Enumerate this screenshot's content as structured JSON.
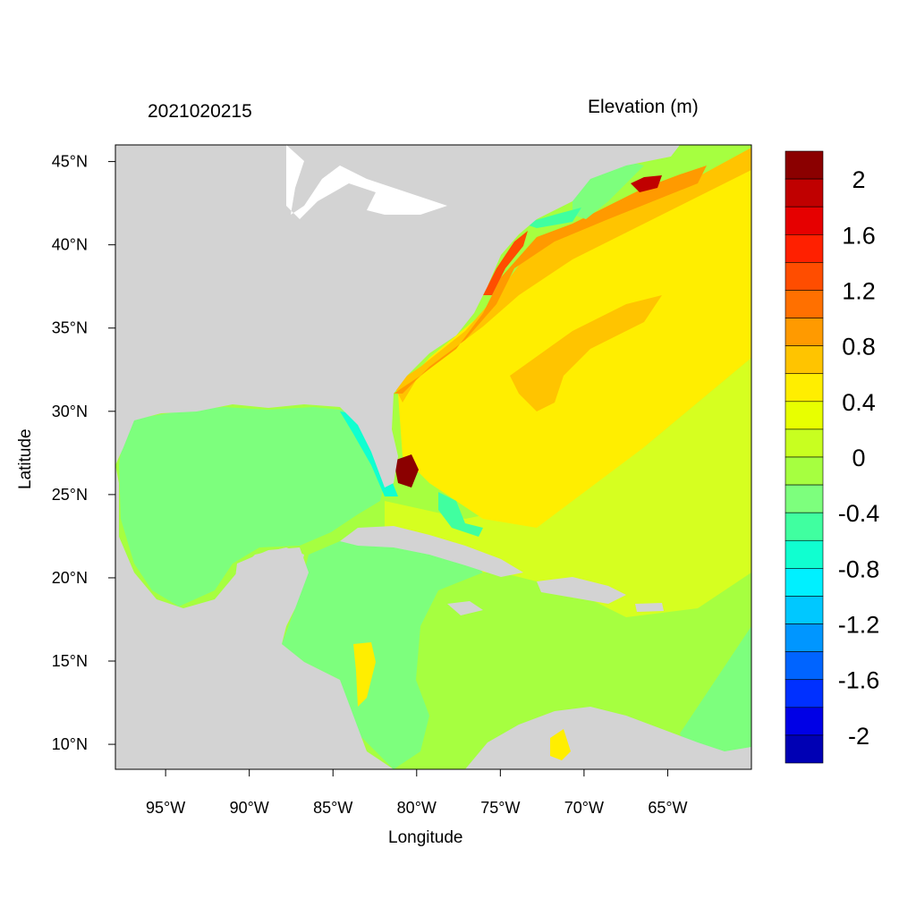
{
  "chart_data": {
    "type": "heatmap",
    "title_left": "2021020215",
    "title_right": "Elevation (m)",
    "xlabel": "Longitude",
    "ylabel": "Latitude",
    "x_ticks": [
      "95°W",
      "90°W",
      "85°W",
      "80°W",
      "75°W",
      "70°W",
      "65°W"
    ],
    "y_ticks": [
      "45°N",
      "40°N",
      "35°N",
      "30°N",
      "25°N",
      "20°N",
      "15°N",
      "10°N"
    ],
    "lon_range": [
      -98,
      -60
    ],
    "lat_range": [
      8.5,
      46
    ],
    "colorbar": {
      "labels": [
        "2",
        "1.6",
        "1.2",
        "0.8",
        "0.4",
        "0",
        "-0.4",
        "-0.8",
        "-1.2",
        "-1.6",
        "-2"
      ],
      "colors": [
        "#8b0000",
        "#c00000",
        "#e60000",
        "#ff2000",
        "#ff4d00",
        "#ff7000",
        "#ff9a00",
        "#ffc400",
        "#ffee00",
        "#e8ff00",
        "#c8ff20",
        "#a6ff40",
        "#7dff7d",
        "#40ffa0",
        "#10ffd0",
        "#00f0ff",
        "#00c8ff",
        "#0096ff",
        "#0064ff",
        "#0030ff",
        "#0000e6",
        "#0000b4"
      ]
    },
    "land_color": "#d3d3d3"
  }
}
